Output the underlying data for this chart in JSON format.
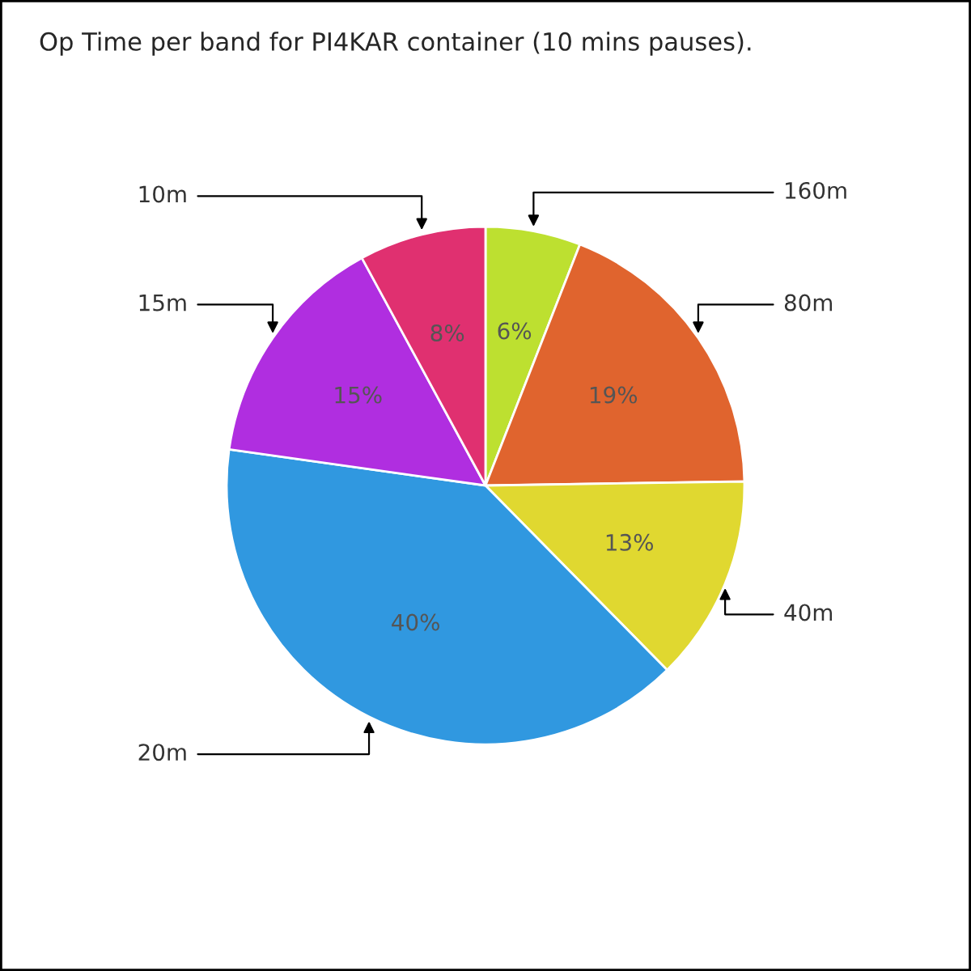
{
  "chart_data": {
    "type": "pie",
    "title": "Op Time per band for PI4KAR container (10 mins pauses).",
    "categories": [
      "160m",
      "80m",
      "40m",
      "20m",
      "15m",
      "10m"
    ],
    "values": [
      6,
      19,
      13,
      40,
      15,
      8
    ],
    "value_labels": [
      "6%",
      "19%",
      "13%",
      "40%",
      "15%",
      "8%"
    ],
    "colors": [
      "#bde030",
      "#e0642e",
      "#e0d830",
      "#3098e0",
      "#b02ee0",
      "#e03070"
    ]
  }
}
